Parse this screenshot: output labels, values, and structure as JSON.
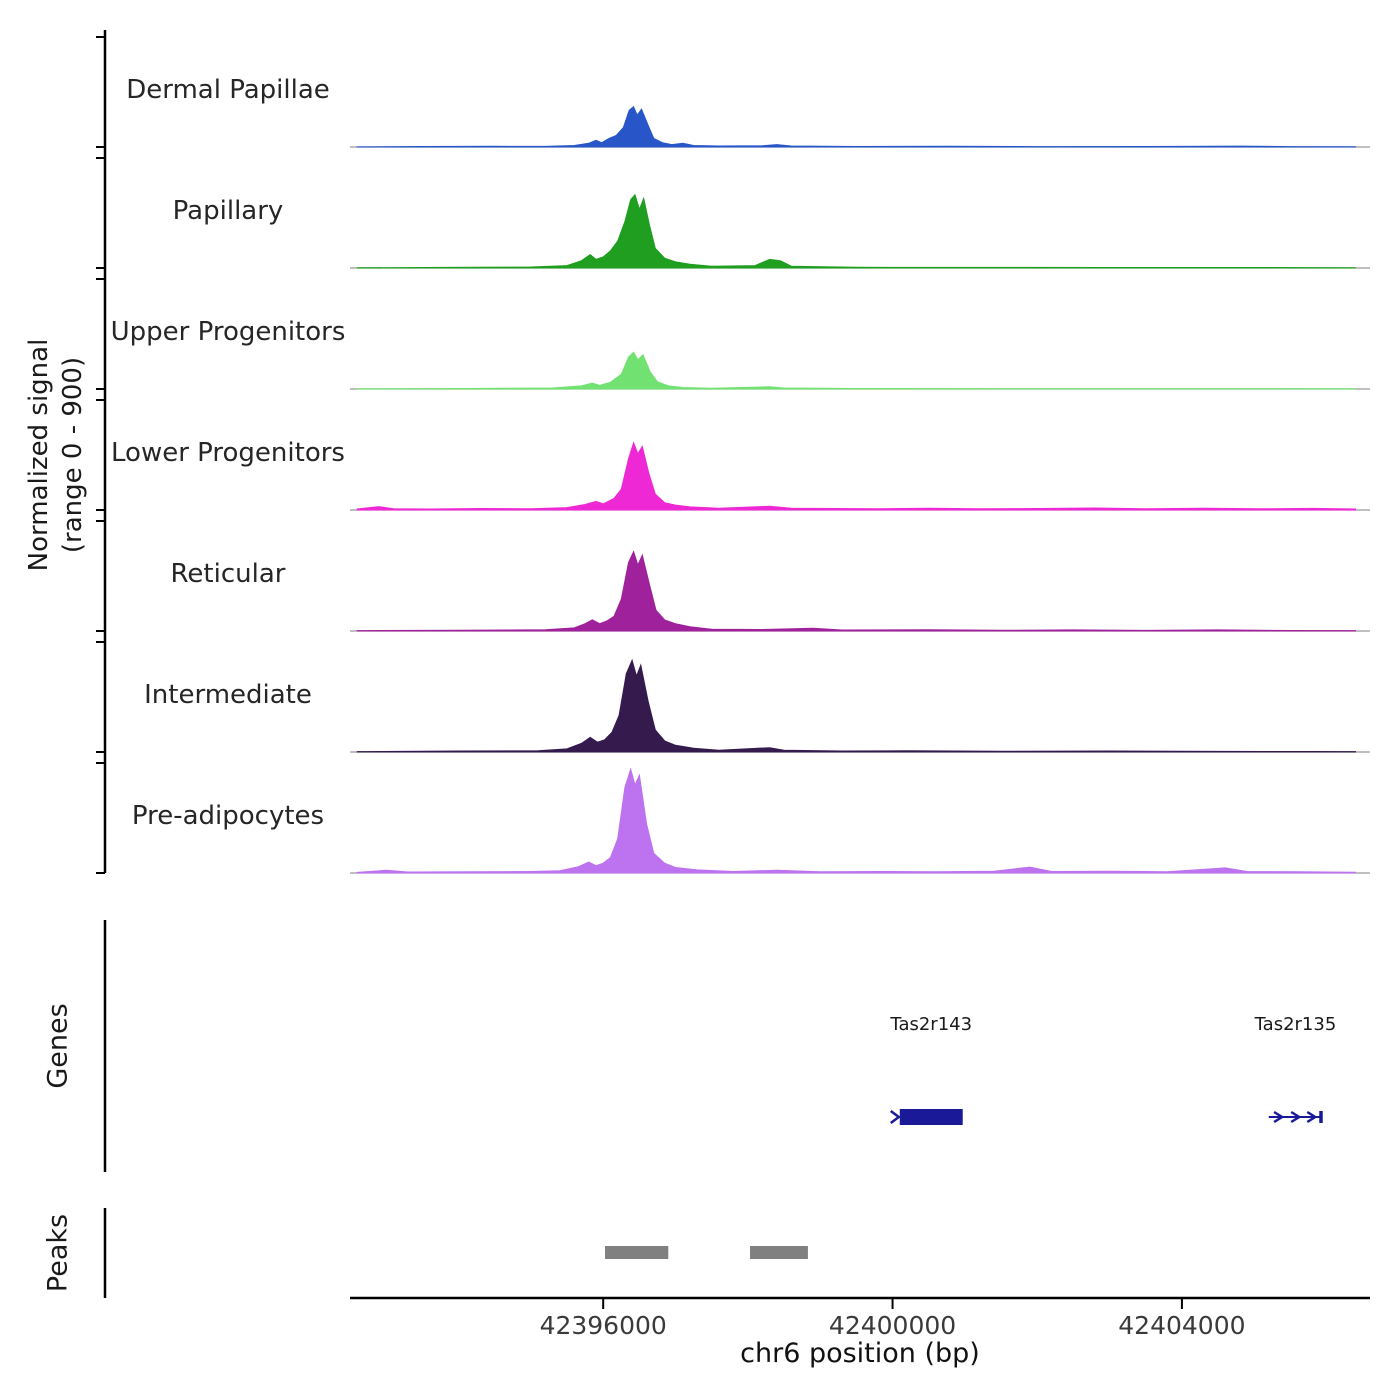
{
  "figure": {
    "ylabel_line1": "Normalized signal",
    "ylabel_line2": "(range 0 - 900)",
    "genes_label": "Genes",
    "peaks_label": "Peaks",
    "xlabel": "chr6 position (bp)"
  },
  "chart_data": {
    "type": "area",
    "title": "",
    "xlabel": "chr6 position (bp)",
    "ylabel": "Normalized signal (range 0 - 900)",
    "x_range_bp": [
      42392500,
      42406600
    ],
    "y_range_per_track": [
      0,
      900
    ],
    "grid": false,
    "axis_color": "#000000",
    "baseline_color": "#999999",
    "track_label_color": "#262626",
    "tick_label_color": "#3a3a3a",
    "gene_label_color": "#1a1a1a",
    "peak_color": "#808080",
    "xticks": [
      {
        "bp": 42396000,
        "label": "42396000"
      },
      {
        "bp": 42400000,
        "label": "42400000"
      },
      {
        "bp": 42404000,
        "label": "42404000"
      }
    ],
    "tracks": [
      {
        "name": "Dermal Papillae",
        "color": "#2856c8",
        "points": [
          [
            42392600,
            1
          ],
          [
            42393500,
            4
          ],
          [
            42394500,
            6
          ],
          [
            42395200,
            5
          ],
          [
            42395600,
            12
          ],
          [
            42395800,
            30
          ],
          [
            42395900,
            55
          ],
          [
            42395980,
            35
          ],
          [
            42396080,
            70
          ],
          [
            42396180,
            95
          ],
          [
            42396280,
            160
          ],
          [
            42396360,
            300
          ],
          [
            42396420,
            330
          ],
          [
            42396470,
            260
          ],
          [
            42396530,
            310
          ],
          [
            42396620,
            180
          ],
          [
            42396700,
            70
          ],
          [
            42396820,
            35
          ],
          [
            42396950,
            20
          ],
          [
            42397100,
            30
          ],
          [
            42397250,
            12
          ],
          [
            42397600,
            8
          ],
          [
            42398200,
            10
          ],
          [
            42398400,
            20
          ],
          [
            42398600,
            8
          ],
          [
            42399500,
            4
          ],
          [
            42400800,
            6
          ],
          [
            42402000,
            3
          ],
          [
            42403500,
            4
          ],
          [
            42404800,
            7
          ],
          [
            42405500,
            3
          ],
          [
            42406400,
            2
          ]
        ]
      },
      {
        "name": "Papillary",
        "color": "#1f9e1f",
        "points": [
          [
            42392600,
            2
          ],
          [
            42393800,
            5
          ],
          [
            42395000,
            8
          ],
          [
            42395500,
            20
          ],
          [
            42395700,
            60
          ],
          [
            42395820,
            110
          ],
          [
            42395900,
            70
          ],
          [
            42396000,
            90
          ],
          [
            42396100,
            140
          ],
          [
            42396200,
            220
          ],
          [
            42396300,
            380
          ],
          [
            42396380,
            560
          ],
          [
            42396440,
            600
          ],
          [
            42396500,
            480
          ],
          [
            42396560,
            570
          ],
          [
            42396640,
            350
          ],
          [
            42396720,
            160
          ],
          [
            42396850,
            80
          ],
          [
            42397000,
            50
          ],
          [
            42397200,
            30
          ],
          [
            42397500,
            15
          ],
          [
            42398100,
            20
          ],
          [
            42398300,
            70
          ],
          [
            42398450,
            60
          ],
          [
            42398600,
            15
          ],
          [
            42399500,
            6
          ],
          [
            42401000,
            5
          ],
          [
            42403000,
            4
          ],
          [
            42405000,
            4
          ],
          [
            42406400,
            2
          ]
        ]
      },
      {
        "name": "Upper Progenitors",
        "color": "#71e271",
        "points": [
          [
            42392600,
            2
          ],
          [
            42394000,
            4
          ],
          [
            42395300,
            8
          ],
          [
            42395700,
            25
          ],
          [
            42395850,
            48
          ],
          [
            42395950,
            30
          ],
          [
            42396100,
            55
          ],
          [
            42396250,
            120
          ],
          [
            42396350,
            260
          ],
          [
            42396420,
            300
          ],
          [
            42396480,
            240
          ],
          [
            42396550,
            280
          ],
          [
            42396650,
            140
          ],
          [
            42396750,
            60
          ],
          [
            42396900,
            25
          ],
          [
            42397100,
            12
          ],
          [
            42397500,
            6
          ],
          [
            42398300,
            18
          ],
          [
            42398500,
            8
          ],
          [
            42399500,
            4
          ],
          [
            42401500,
            3
          ],
          [
            42403500,
            3
          ],
          [
            42405000,
            3
          ],
          [
            42406400,
            2
          ]
        ]
      },
      {
        "name": "Lower Progenitors",
        "color": "#ee28d4",
        "points": [
          [
            42392600,
            8
          ],
          [
            42392900,
            28
          ],
          [
            42393100,
            10
          ],
          [
            42393600,
            8
          ],
          [
            42394300,
            12
          ],
          [
            42395000,
            10
          ],
          [
            42395500,
            20
          ],
          [
            42395750,
            45
          ],
          [
            42395900,
            70
          ],
          [
            42396000,
            50
          ],
          [
            42396150,
            95
          ],
          [
            42396250,
            170
          ],
          [
            42396350,
            420
          ],
          [
            42396420,
            550
          ],
          [
            42396480,
            460
          ],
          [
            42396540,
            520
          ],
          [
            42396630,
            300
          ],
          [
            42396720,
            130
          ],
          [
            42396850,
            60
          ],
          [
            42397000,
            40
          ],
          [
            42397200,
            25
          ],
          [
            42397600,
            15
          ],
          [
            42398300,
            30
          ],
          [
            42398600,
            15
          ],
          [
            42399200,
            12
          ],
          [
            42399800,
            10
          ],
          [
            42400500,
            15
          ],
          [
            42401200,
            10
          ],
          [
            42402000,
            12
          ],
          [
            42402800,
            16
          ],
          [
            42403500,
            10
          ],
          [
            42404300,
            14
          ],
          [
            42405100,
            10
          ],
          [
            42405800,
            13
          ],
          [
            42406400,
            8
          ]
        ]
      },
      {
        "name": "Reticular",
        "color": "#a0219c",
        "points": [
          [
            42392600,
            3
          ],
          [
            42394000,
            6
          ],
          [
            42395200,
            10
          ],
          [
            42395600,
            25
          ],
          [
            42395750,
            60
          ],
          [
            42395850,
            92
          ],
          [
            42395950,
            60
          ],
          [
            42396050,
            82
          ],
          [
            42396150,
            120
          ],
          [
            42396250,
            260
          ],
          [
            42396350,
            560
          ],
          [
            42396420,
            650
          ],
          [
            42396480,
            540
          ],
          [
            42396540,
            620
          ],
          [
            42396640,
            380
          ],
          [
            42396730,
            170
          ],
          [
            42396850,
            90
          ],
          [
            42397000,
            60
          ],
          [
            42397200,
            35
          ],
          [
            42397500,
            15
          ],
          [
            42398200,
            12
          ],
          [
            42398900,
            22
          ],
          [
            42399300,
            8
          ],
          [
            42400500,
            10
          ],
          [
            42401500,
            6
          ],
          [
            42402500,
            9
          ],
          [
            42403500,
            5
          ],
          [
            42404500,
            9
          ],
          [
            42405500,
            4
          ],
          [
            42406400,
            3
          ]
        ]
      },
      {
        "name": "Intermediate",
        "color": "#341a4d",
        "points": [
          [
            42392600,
            3
          ],
          [
            42394000,
            8
          ],
          [
            42395100,
            10
          ],
          [
            42395500,
            25
          ],
          [
            42395700,
            70
          ],
          [
            42395820,
            120
          ],
          [
            42395920,
            80
          ],
          [
            42396020,
            100
          ],
          [
            42396120,
            160
          ],
          [
            42396220,
            300
          ],
          [
            42396320,
            640
          ],
          [
            42396400,
            750
          ],
          [
            42396460,
            620
          ],
          [
            42396520,
            710
          ],
          [
            42396620,
            420
          ],
          [
            42396720,
            180
          ],
          [
            42396850,
            90
          ],
          [
            42397000,
            55
          ],
          [
            42397250,
            30
          ],
          [
            42397600,
            15
          ],
          [
            42398300,
            35
          ],
          [
            42398500,
            15
          ],
          [
            42399300,
            8
          ],
          [
            42400200,
            10
          ],
          [
            42401500,
            6
          ],
          [
            42403000,
            8
          ],
          [
            42404500,
            5
          ],
          [
            42405800,
            4
          ],
          [
            42406400,
            3
          ]
        ]
      },
      {
        "name": "Pre-adipocytes",
        "color": "#bd72ef",
        "points": [
          [
            42392600,
            6
          ],
          [
            42393000,
            22
          ],
          [
            42393300,
            8
          ],
          [
            42394200,
            10
          ],
          [
            42395000,
            12
          ],
          [
            42395400,
            18
          ],
          [
            42395650,
            50
          ],
          [
            42395800,
            90
          ],
          [
            42395900,
            60
          ],
          [
            42396000,
            80
          ],
          [
            42396100,
            125
          ],
          [
            42396200,
            280
          ],
          [
            42396300,
            700
          ],
          [
            42396380,
            850
          ],
          [
            42396440,
            720
          ],
          [
            42396500,
            800
          ],
          [
            42396600,
            400
          ],
          [
            42396700,
            160
          ],
          [
            42396850,
            80
          ],
          [
            42397000,
            45
          ],
          [
            42397300,
            25
          ],
          [
            42397800,
            12
          ],
          [
            42398400,
            22
          ],
          [
            42399000,
            10
          ],
          [
            42399800,
            12
          ],
          [
            42400600,
            10
          ],
          [
            42401400,
            15
          ],
          [
            42401900,
            48
          ],
          [
            42402200,
            12
          ],
          [
            42403000,
            15
          ],
          [
            42403800,
            10
          ],
          [
            42404600,
            42
          ],
          [
            42404900,
            12
          ],
          [
            42405600,
            10
          ],
          [
            42406400,
            6
          ]
        ]
      }
    ],
    "genes": [
      {
        "name": "Tas2r143",
        "start": 42400100,
        "end": 42400970,
        "style": "box",
        "color": "#1a1a99"
      },
      {
        "name": "Tas2r135",
        "start": 42405200,
        "end": 42405940,
        "style": "arrow-line",
        "color": "#1a1a99"
      }
    ],
    "peaks": [
      {
        "start": 42396025,
        "end": 42396900
      },
      {
        "start": 42398030,
        "end": 42398830
      }
    ]
  }
}
